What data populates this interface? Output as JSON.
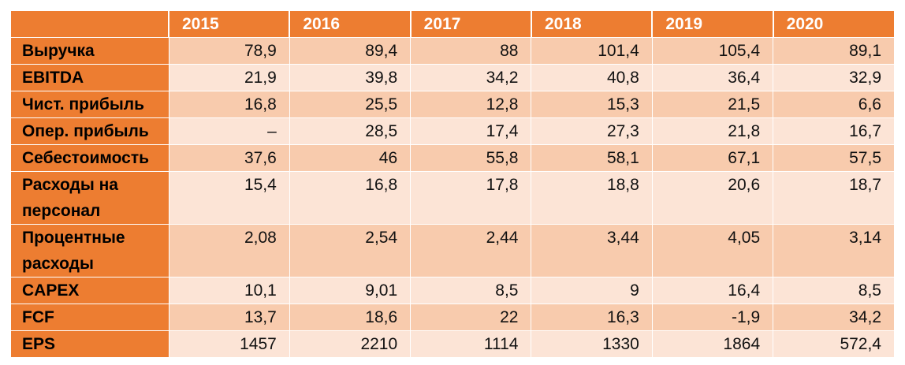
{
  "table": {
    "columns": [
      "",
      "2015",
      "2016",
      "2017",
      "2018",
      "2019",
      "2020"
    ],
    "rows": [
      {
        "label": "Выручка",
        "values": [
          "78,9",
          "89,4",
          "88",
          "101,4",
          "105,4",
          "89,1"
        ]
      },
      {
        "label": "EBITDA",
        "values": [
          "21,9",
          "39,8",
          "34,2",
          "40,8",
          "36,4",
          "32,9"
        ]
      },
      {
        "label": "Чист. прибыль",
        "values": [
          "16,8",
          "25,5",
          "12,8",
          "15,3",
          "21,5",
          "6,6"
        ]
      },
      {
        "label": "Опер. прибыль",
        "values": [
          "–",
          "28,5",
          "17,4",
          "27,3",
          "21,8",
          "16,7"
        ]
      },
      {
        "label": "Себестоимость",
        "values": [
          "37,6",
          "46",
          "55,8",
          "58,1",
          "67,1",
          "57,5"
        ]
      },
      {
        "label": "Расходы на персонал",
        "values": [
          "15,4",
          "16,8",
          "17,8",
          "18,8",
          "20,6",
          "18,7"
        ]
      },
      {
        "label": "Процентные расходы",
        "values": [
          "2,08",
          "2,54",
          "2,44",
          "3,44",
          "4,05",
          "3,14"
        ]
      },
      {
        "label": "CAPEX",
        "values": [
          "10,1",
          "9,01",
          "8,5",
          "9",
          "16,4",
          "8,5"
        ]
      },
      {
        "label": "FCF",
        "values": [
          "13,7",
          "18,6",
          "22",
          "16,3",
          "-1,9",
          "34,2"
        ]
      },
      {
        "label": "EPS",
        "values": [
          "1457",
          "2210",
          "1114",
          "1330",
          "1864",
          "572,4"
        ]
      }
    ]
  },
  "colors": {
    "header": "#ed7d31",
    "row_dark": "#f8cbad",
    "row_light": "#fce4d6"
  }
}
